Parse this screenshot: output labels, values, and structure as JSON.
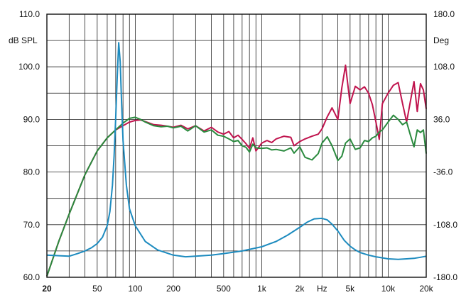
{
  "chart_data": {
    "type": "line",
    "x_scale": "log",
    "xlim": [
      20,
      20000
    ],
    "ylim": [
      60,
      110
    ],
    "ylim_right": [
      -180,
      180
    ],
    "xlabel": "Hz",
    "ylabel": "dB SPL",
    "ylabel_right": "Deg",
    "grid": true,
    "x_ticks": [
      {
        "value": 20,
        "label": "20",
        "bold": true
      },
      {
        "value": 50,
        "label": "50"
      },
      {
        "value": 100,
        "label": "100"
      },
      {
        "value": 200,
        "label": "200"
      },
      {
        "value": 500,
        "label": "500"
      },
      {
        "value": 1000,
        "label": "1k"
      },
      {
        "value": 2000,
        "label": "2k"
      },
      {
        "value": 5000,
        "label": "5k"
      },
      {
        "value": 10000,
        "label": "10k"
      },
      {
        "value": 20000,
        "label": "20k"
      }
    ],
    "y_ticks": [
      {
        "value": 60,
        "label": "60.0"
      },
      {
        "value": 70,
        "label": "70.0"
      },
      {
        "value": 80,
        "label": "80.0"
      },
      {
        "value": 90,
        "label": "90.0"
      },
      {
        "value": 100,
        "label": "100.0"
      },
      {
        "value": 110,
        "label": "110.0"
      }
    ],
    "y_ticks_right": [
      {
        "value": -180,
        "label": "-180.0"
      },
      {
        "value": -108,
        "label": "-108.0"
      },
      {
        "value": -36,
        "label": "-36.0"
      },
      {
        "value": 36,
        "label": "36.0"
      },
      {
        "value": 108,
        "label": "108.0"
      },
      {
        "value": 180,
        "label": "180.0"
      }
    ],
    "series": [
      {
        "color": "#c0144e",
        "x": [
          20,
          25,
          30,
          40,
          50,
          60,
          70,
          80,
          90,
          100,
          110,
          120,
          140,
          160,
          180,
          200,
          230,
          260,
          300,
          350,
          400,
          450,
          500,
          550,
          600,
          650,
          700,
          750,
          800,
          850,
          900,
          1000,
          1100,
          1200,
          1300,
          1500,
          1700,
          1800,
          2000,
          2200,
          2500,
          2800,
          3000,
          3300,
          3600,
          4000,
          4300,
          4600,
          5000,
          5500,
          6000,
          6500,
          7000,
          7500,
          8000,
          8500,
          9000,
          10000,
          11000,
          12000,
          13000,
          14000,
          15000,
          16000,
          17000,
          18000,
          19000,
          20000
        ],
        "values": [
          60.2,
          67.0,
          72.0,
          79.5,
          84.0,
          86.5,
          88.0,
          88.8,
          89.5,
          89.8,
          89.9,
          89.6,
          89.0,
          88.9,
          88.7,
          88.5,
          88.9,
          88.2,
          88.8,
          87.8,
          88.5,
          87.6,
          87.2,
          87.7,
          86.5,
          87.0,
          86.2,
          85.4,
          84.5,
          86.5,
          84.0,
          85.5,
          86.0,
          85.6,
          86.3,
          86.8,
          86.6,
          85.0,
          85.8,
          86.3,
          86.8,
          87.2,
          88.2,
          90.5,
          92.2,
          90.0,
          96.0,
          100.3,
          93.0,
          96.3,
          95.6,
          96.2,
          95.0,
          92.8,
          89.5,
          86.2,
          93.0,
          95.0,
          96.5,
          97.0,
          93.0,
          89.5,
          93.5,
          97.2,
          91.5,
          96.8,
          95.6,
          92.0
        ]
      },
      {
        "color": "#2a8a3e",
        "x": [
          20,
          25,
          30,
          40,
          50,
          60,
          70,
          80,
          90,
          100,
          110,
          120,
          140,
          160,
          180,
          200,
          230,
          260,
          300,
          350,
          400,
          450,
          500,
          550,
          600,
          650,
          700,
          750,
          800,
          850,
          900,
          1000,
          1100,
          1200,
          1300,
          1500,
          1700,
          1800,
          2000,
          2200,
          2500,
          2800,
          3000,
          3300,
          3600,
          4000,
          4300,
          4600,
          5000,
          5500,
          6000,
          6500,
          7000,
          7500,
          8000,
          8500,
          9000,
          10000,
          11000,
          12000,
          13000,
          14000,
          15000,
          16000,
          17000,
          18000,
          19000,
          20000
        ],
        "values": [
          60.2,
          67.0,
          72.0,
          79.5,
          84.0,
          86.5,
          88.0,
          89.3,
          90.2,
          90.4,
          90.0,
          89.5,
          88.8,
          88.6,
          88.7,
          88.4,
          88.7,
          87.8,
          88.8,
          87.6,
          88.0,
          87.0,
          86.8,
          86.3,
          85.8,
          86.0,
          85.0,
          84.7,
          83.8,
          85.3,
          84.6,
          84.5,
          84.6,
          84.2,
          84.3,
          84.0,
          84.6,
          83.6,
          84.8,
          82.8,
          82.3,
          83.5,
          85.5,
          86.7,
          85.0,
          82.2,
          83.0,
          85.5,
          86.3,
          84.3,
          84.6,
          86.0,
          85.8,
          86.5,
          86.8,
          87.6,
          88.0,
          89.5,
          90.8,
          90.0,
          89.0,
          89.5,
          87.0,
          84.8,
          88.0,
          87.5,
          88.0,
          83.5
        ]
      },
      {
        "color": "#1d8bbf",
        "x": [
          20,
          25,
          30,
          35,
          40,
          45,
          50,
          55,
          60,
          63,
          66,
          68,
          70,
          72,
          74,
          76,
          78,
          80,
          85,
          90,
          100,
          120,
          150,
          200,
          250,
          300,
          400,
          500,
          700,
          1000,
          1300,
          1600,
          2000,
          2300,
          2600,
          3000,
          3300,
          3600,
          4000,
          4500,
          5000,
          5500,
          6000,
          7000,
          8000,
          10000,
          12000,
          14000,
          16000,
          18000,
          20000
        ],
        "values": [
          64.2,
          64.1,
          64.0,
          64.5,
          65.0,
          65.6,
          66.4,
          67.6,
          69.8,
          72.5,
          77.5,
          83.0,
          90.0,
          98.0,
          104.6,
          101.0,
          93.0,
          86.0,
          77.5,
          73.0,
          69.8,
          66.8,
          65.2,
          64.2,
          63.9,
          64.0,
          64.2,
          64.5,
          65.0,
          65.8,
          66.8,
          68.0,
          69.5,
          70.5,
          71.1,
          71.2,
          70.9,
          70.1,
          68.8,
          67.0,
          65.9,
          65.2,
          64.7,
          64.2,
          63.9,
          63.5,
          63.4,
          63.5,
          63.6,
          63.8,
          64.0
        ]
      }
    ]
  }
}
